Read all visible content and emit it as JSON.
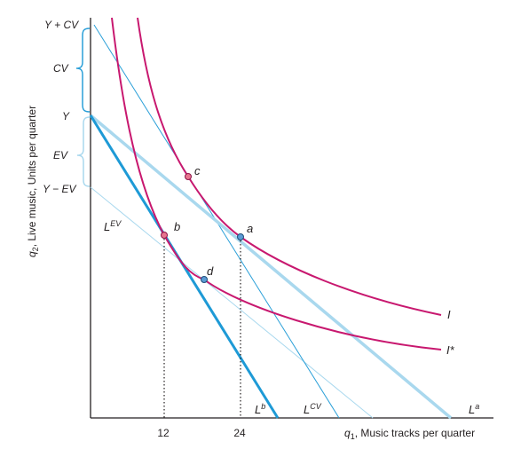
{
  "chart_data": {
    "type": "line",
    "axes": {
      "x_label_var": "q",
      "x_label_sub": "1",
      "x_label_text": ", Music tracks per quarter",
      "y_label_var": "q",
      "y_label_sub": "2",
      "y_label_text": ", Live music, Units per quarter",
      "x_ticks": [
        12,
        24
      ],
      "xlim": [
        0,
        56
      ],
      "ylim": [
        0,
        60
      ],
      "grid": false
    },
    "y_markers": {
      "y_plus_cv": {
        "label": "Y + CV",
        "value": 56
      },
      "y": {
        "label": "Y",
        "value": 44
      },
      "y_minus_ev": {
        "label": "Y − EV",
        "value": 33
      }
    },
    "braces": {
      "cv": {
        "label": "CV",
        "from": 44,
        "to": 56,
        "color": "#2a9fd8"
      },
      "ev": {
        "label": "EV",
        "from": 33,
        "to": 44,
        "color": "#a9d8ee"
      }
    },
    "budget_lines": [
      {
        "name": "L",
        "sup": "a",
        "points": [
          [
            0,
            44
          ],
          [
            56,
            0
          ]
        ],
        "color": "#a9d8ee",
        "width": 3.5
      },
      {
        "name": "L",
        "sup": "b",
        "points": [
          [
            0,
            44
          ],
          [
            30,
            0
          ]
        ],
        "color": "#1e9ad6",
        "width": 3
      },
      {
        "name": "L",
        "sup": "CV",
        "points": [
          [
            0,
            56
          ],
          [
            40,
            0
          ]
        ],
        "color": "#2a9fd8",
        "width": 1
      },
      {
        "name": "L",
        "sup": "EV",
        "points": [
          [
            0,
            33
          ],
          [
            45,
            0
          ]
        ],
        "color": "#a9d8ee",
        "width": 1
      }
    ],
    "indifference_curves": [
      {
        "name": "I",
        "points": [
          [
            7.7,
            60
          ],
          [
            12,
            40
          ],
          [
            15.5,
            34
          ],
          [
            19.5,
            26.5
          ],
          [
            24,
            21.5
          ],
          [
            32,
            16
          ],
          [
            40,
            13
          ],
          [
            50,
            11
          ]
        ]
      },
      {
        "name": "I*",
        "points": [
          [
            3.4,
            60
          ],
          [
            6,
            42
          ],
          [
            9.2,
            27
          ],
          [
            12,
            21.5
          ],
          [
            18,
            16.5
          ],
          [
            24,
            12.5
          ],
          [
            32,
            10
          ],
          [
            40,
            8.5
          ],
          [
            50,
            7
          ]
        ]
      }
    ],
    "points": [
      {
        "label": "a",
        "x": 24,
        "y": 21.5,
        "color": "#5b9bd5"
      },
      {
        "label": "b",
        "x": 12,
        "y": 21.5,
        "color": "#e8748f"
      },
      {
        "label": "c",
        "x": 15.5,
        "y": 34,
        "color": "#e8748f"
      },
      {
        "label": "d",
        "x": 18,
        "y": 16.5,
        "color": "#5b9bd5"
      }
    ],
    "dotted_guides": [
      12,
      24
    ]
  }
}
